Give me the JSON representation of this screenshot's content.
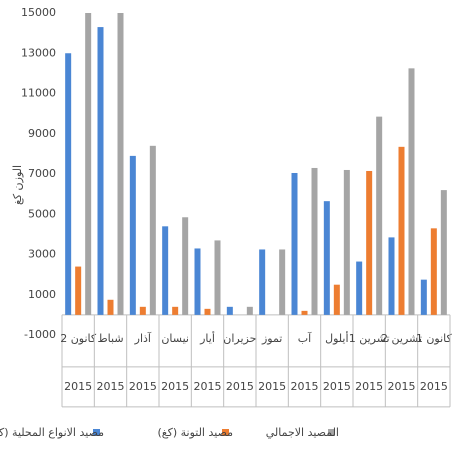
{
  "chart_data": {
    "type": "bar",
    "y_label": "الوزن كغ",
    "categories": [
      "كانون 2",
      "شباط",
      "آذار",
      "نيسان",
      "أيار",
      "حزيران",
      "تموز",
      "آب",
      "أيلول",
      "تشرين 1",
      "تشرين 2",
      "كانون 1"
    ],
    "category_groups": [
      "2015",
      "2015",
      "2015",
      "2015",
      "2015",
      "2015",
      "2015",
      "2015",
      "2015",
      "2015",
      "2015",
      "2015"
    ],
    "series": [
      {
        "name": "مصيد الانواع المحلية (كغ)",
        "color": "#4a86d4",
        "values": [
          13000,
          14300,
          7900,
          4400,
          3300,
          400,
          3250,
          7050,
          5650,
          2650,
          3850,
          1750
        ]
      },
      {
        "name": "مصيد التونة (كغ)",
        "color": "#ed7d31",
        "values": [
          2400,
          750,
          400,
          400,
          300,
          0,
          0,
          200,
          1500,
          7150,
          8350,
          4300
        ]
      },
      {
        "name": "المصيد الاجمالي",
        "color": "#a5a5a5",
        "values": [
          15000,
          15000,
          8400,
          4850,
          3700,
          400,
          3250,
          7300,
          7200,
          9850,
          12250,
          6200
        ]
      }
    ],
    "ylim": [
      -1000,
      15000
    ],
    "yticks": [
      -1000,
      1000,
      3000,
      5000,
      7000,
      9000,
      11000,
      13000,
      15000
    ],
    "grid": false,
    "legend": "bottom"
  }
}
